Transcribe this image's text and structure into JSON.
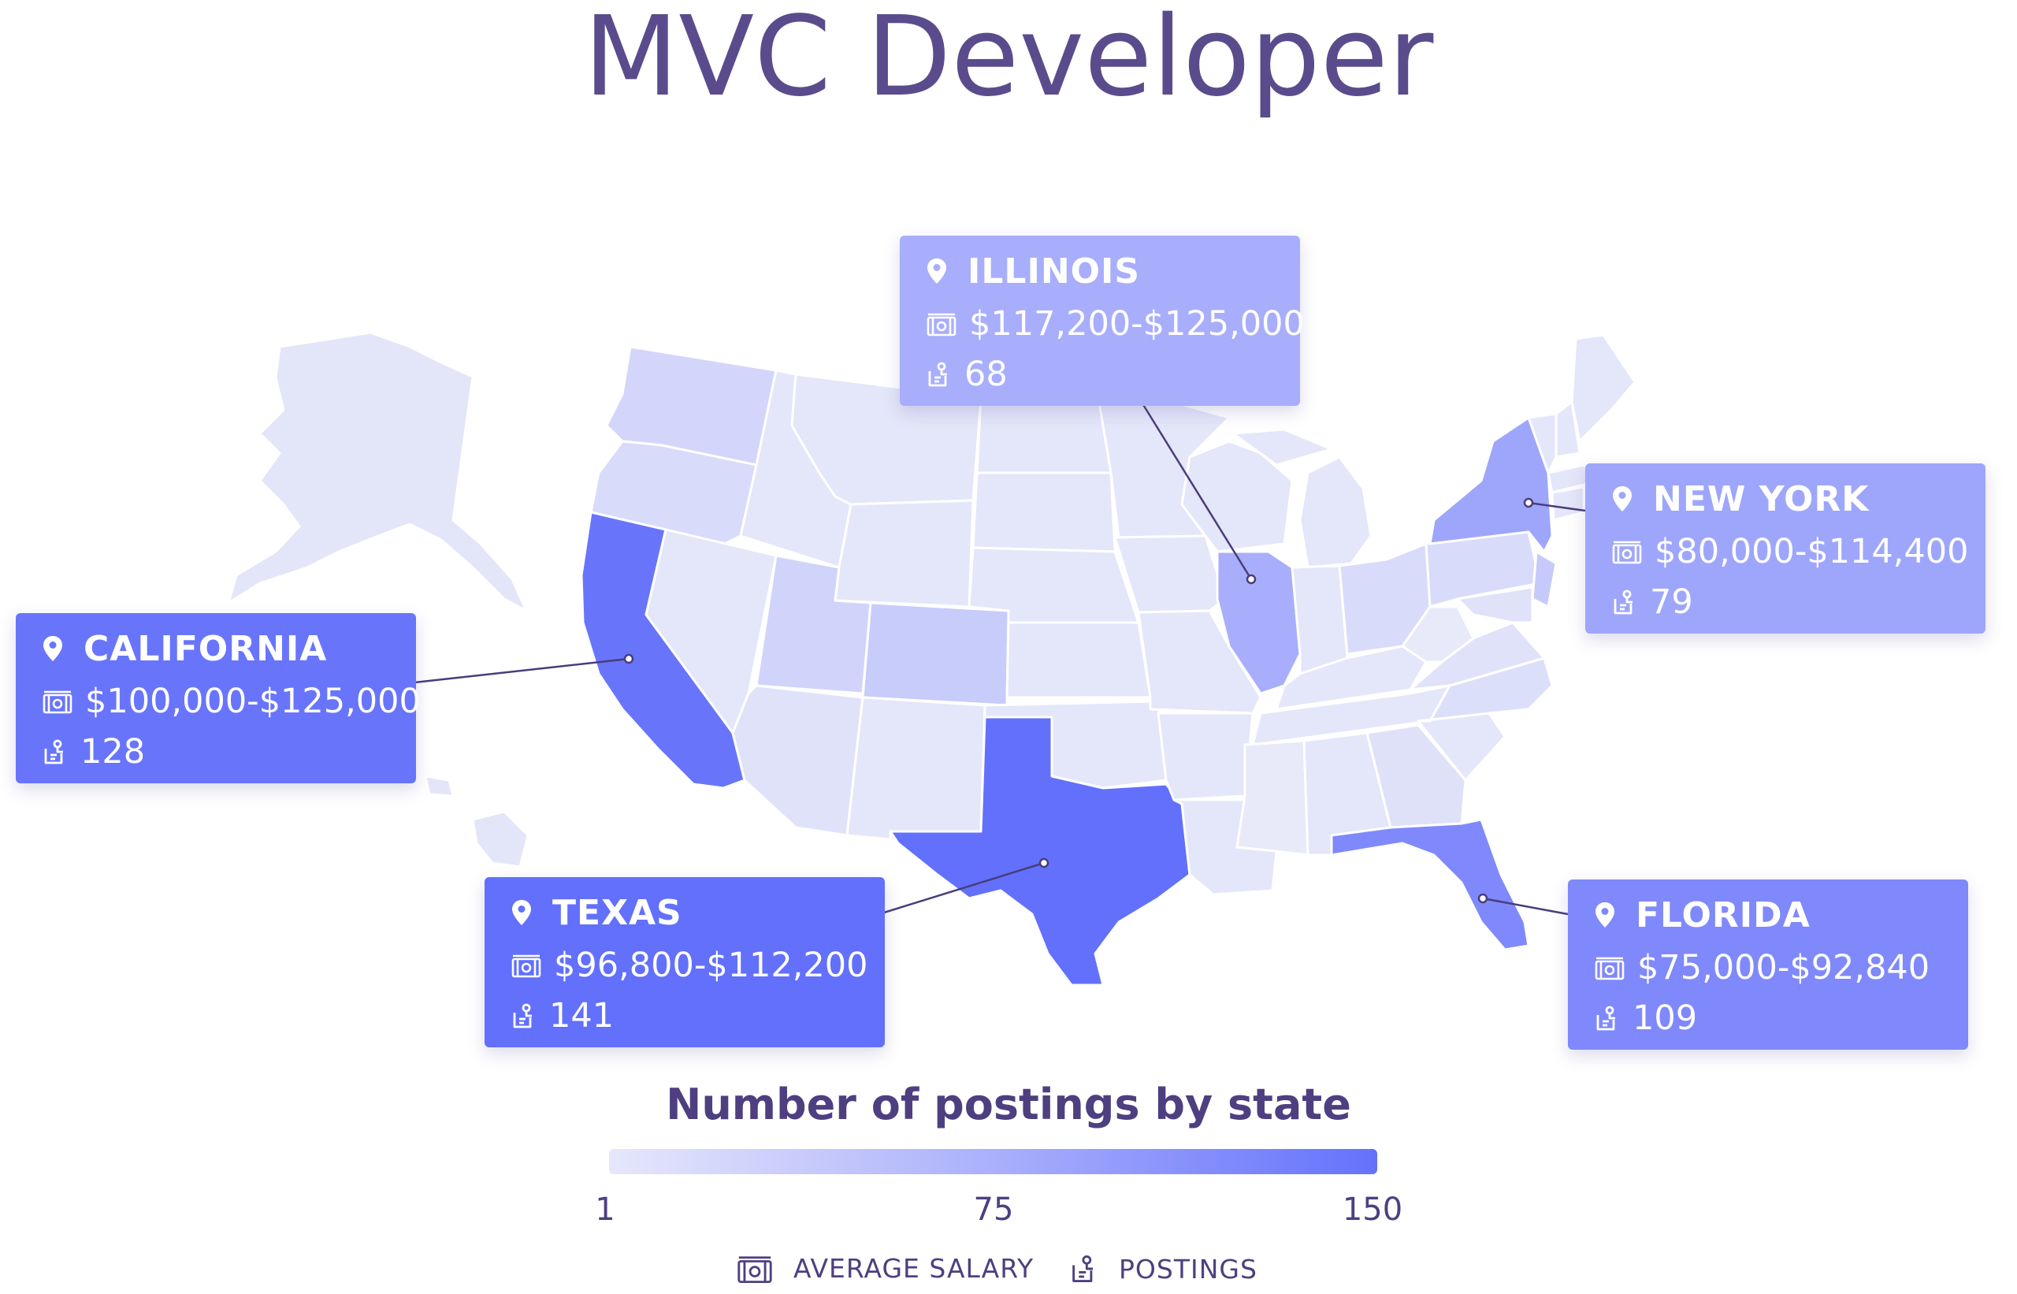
{
  "title": "MVC Developer",
  "colors": {
    "title": "#5a4c8c",
    "scale_low": "#e6e7fb",
    "scale_mid": "#aab0fb",
    "scale_high": "#6472fb",
    "state_default": "#e2e4f8",
    "state_border": "#ffffff"
  },
  "callouts": [
    {
      "id": "california",
      "state": "CALIFORNIA",
      "salary": "$100,000-$125,000",
      "postings": "128",
      "color": "#6875fb"
    },
    {
      "id": "illinois",
      "state": "ILLINOIS",
      "salary": "$117,200-$125,000",
      "postings": "68",
      "color": "#a8aefb"
    },
    {
      "id": "newyork",
      "state": "NEW YORK",
      "salary": "$80,000-$114,400",
      "postings": "79",
      "color": "#9ea6fb"
    },
    {
      "id": "texas",
      "state": "TEXAS",
      "salary": "$96,800-$112,200",
      "postings": "141",
      "color": "#6270fc"
    },
    {
      "id": "florida",
      "state": "FLORIDA",
      "salary": "$75,000-$92,840",
      "postings": "109",
      "color": "#7f89fb"
    }
  ],
  "legend": {
    "title": "Number of postings by state",
    "min": "1",
    "mid": "75",
    "max": "150"
  },
  "key": {
    "salary_label": "AVERAGE SALARY",
    "postings_label": "POSTINGS",
    "salary_icon": "money-icon",
    "postings_icon": "postings-icon"
  }
}
